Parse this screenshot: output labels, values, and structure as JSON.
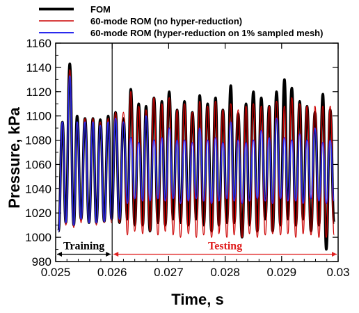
{
  "chart_data": {
    "type": "line",
    "xlabel": "Time, s",
    "ylabel": "Pressure, kPa",
    "xlim": [
      0.025,
      0.03
    ],
    "ylim": [
      980,
      1160
    ],
    "x_ticks": [
      "0.025",
      "0.026",
      "0.027",
      "0.028",
      "0.029",
      "0.03"
    ],
    "y_ticks": [
      "980",
      "1000",
      "1020",
      "1040",
      "1060",
      "1080",
      "1100",
      "1120",
      "1140",
      "1160"
    ],
    "legend_position": "top-left, outside plot",
    "series": [
      {
        "name": "FOM",
        "color": "#000000",
        "peaks_x": [
          0.02512,
          0.02525,
          0.02538,
          0.02552,
          0.02566,
          0.02579,
          0.02593,
          0.02606,
          0.0262,
          0.02633,
          0.02647,
          0.0266,
          0.02674,
          0.02688,
          0.02701,
          0.02715,
          0.02728,
          0.02742,
          0.02755,
          0.02769,
          0.02783,
          0.02796,
          0.0281,
          0.02823,
          0.02837,
          0.0285,
          0.02864,
          0.02878,
          0.02891,
          0.02905,
          0.02918,
          0.02932,
          0.02945,
          0.02959,
          0.02973,
          0.02986
        ],
        "peaks_y": [
          1095,
          1143,
          1100,
          1098,
          1098,
          1097,
          1100,
          1103,
          1098,
          1122,
          1110,
          1108,
          1115,
          1112,
          1120,
          1105,
          1112,
          1103,
          1117,
          1110,
          1115,
          1105,
          1125,
          1102,
          1110,
          1120,
          1115,
          1108,
          1120,
          1130,
          1123,
          1112,
          1108,
          1103,
          1118,
          1105
        ],
        "troughs_x": [
          0.02505,
          0.02518,
          0.02532,
          0.02545,
          0.02559,
          0.02572,
          0.02586,
          0.02599,
          0.02613,
          0.02627,
          0.0264,
          0.02654,
          0.02667,
          0.02681,
          0.02694,
          0.02708,
          0.02721,
          0.02735,
          0.02749,
          0.02762,
          0.02776,
          0.02789,
          0.02803,
          0.02816,
          0.0283,
          0.02843,
          0.02857,
          0.02871,
          0.02884,
          0.02898,
          0.02911,
          0.02925,
          0.02938,
          0.02952,
          0.02966,
          0.02979,
          0.02993
        ],
        "troughs_y": [
          1005,
          1012,
          1010,
          1015,
          1012,
          1012,
          1013,
          1015,
          1012,
          1015,
          1010,
          1010,
          1005,
          1012,
          1010,
          1015,
          1012,
          1010,
          1015,
          1010,
          1005,
          1010,
          1012,
          1012,
          1000,
          1010,
          1005,
          1015,
          1005,
          1010,
          1015,
          1010,
          1015,
          1005,
          1010,
          990,
          1012
        ]
      },
      {
        "name": "60-mode ROM (no hyper-reduction)",
        "color": "#cc0000",
        "peaks_x": [
          0.02512,
          0.02525,
          0.02538,
          0.02552,
          0.02566,
          0.02579,
          0.02593,
          0.02606,
          0.0262,
          0.02633,
          0.02647,
          0.0266,
          0.02674,
          0.02688,
          0.02701,
          0.02715,
          0.02728,
          0.02742,
          0.02755,
          0.02769,
          0.02783,
          0.02796,
          0.0281,
          0.02823,
          0.02837,
          0.0285,
          0.02864,
          0.02878,
          0.02891,
          0.02905,
          0.02918,
          0.02932,
          0.02945,
          0.02959,
          0.02973,
          0.02986
        ],
        "peaks_y": [
          1095,
          1138,
          1095,
          1098,
          1098,
          1095,
          1098,
          1103,
          1103,
          1120,
          1108,
          1105,
          1115,
          1110,
          1115,
          1105,
          1110,
          1103,
          1112,
          1108,
          1112,
          1105,
          1110,
          1105,
          1108,
          1110,
          1108,
          1108,
          1112,
          1108,
          1115,
          1110,
          1108,
          1108,
          1108,
          1108
        ],
        "troughs_x": [
          0.02505,
          0.02518,
          0.02532,
          0.02545,
          0.02559,
          0.02572,
          0.02586,
          0.02599,
          0.02613,
          0.02627,
          0.0264,
          0.02654,
          0.02667,
          0.02681,
          0.02694,
          0.02708,
          0.02721,
          0.02735,
          0.02749,
          0.02762,
          0.02776,
          0.02789,
          0.02803,
          0.02816,
          0.0283,
          0.02843,
          0.02857,
          0.02871,
          0.02884,
          0.02898,
          0.02911,
          0.02925,
          0.02938,
          0.02952,
          0.02966,
          0.02979,
          0.02993
        ],
        "troughs_y": [
          1005,
          1010,
          1008,
          1012,
          1012,
          1010,
          1012,
          1012,
          1012,
          1002,
          1005,
          1003,
          1005,
          1002,
          1005,
          1002,
          1000,
          1003,
          1000,
          1002,
          1000,
          1003,
          1000,
          1002,
          1000,
          1003,
          1000,
          1002,
          1003,
          1002,
          1003,
          1000,
          1003,
          1002,
          1000,
          1000,
          1002
        ]
      },
      {
        "name": "60-mode ROM (hyper-reduction on 1% sampled mesh)",
        "color": "#2a2aee",
        "peaks_x": [
          0.02512,
          0.02525,
          0.02538,
          0.02552,
          0.02566,
          0.02579,
          0.02593,
          0.02606,
          0.0262,
          0.02633,
          0.02647,
          0.0266,
          0.02674,
          0.02688,
          0.02701,
          0.02715,
          0.02728,
          0.02742,
          0.02755,
          0.02769,
          0.02783,
          0.02796,
          0.0281,
          0.02823,
          0.02837,
          0.0285,
          0.02864,
          0.02878,
          0.02891,
          0.02905,
          0.02918,
          0.02932,
          0.02945,
          0.02959,
          0.02973,
          0.02986
        ],
        "peaks_y": [
          1095,
          1133,
          1095,
          1095,
          1095,
          1092,
          1095,
          1098,
          1095,
          1082,
          1078,
          1100,
          1080,
          1082,
          1090,
          1080,
          1080,
          1078,
          1090,
          1080,
          1082,
          1078,
          1095,
          1080,
          1078,
          1080,
          1088,
          1082,
          1098,
          1082,
          1080,
          1085,
          1080,
          1090,
          1078,
          1080
        ],
        "troughs_x": [
          0.02505,
          0.02518,
          0.02532,
          0.02545,
          0.02559,
          0.02572,
          0.02586,
          0.02599,
          0.02613,
          0.02627,
          0.0264,
          0.02654,
          0.02667,
          0.02681,
          0.02694,
          0.02708,
          0.02721,
          0.02735,
          0.02749,
          0.02762,
          0.02776,
          0.02789,
          0.02803,
          0.02816,
          0.0283,
          0.02843,
          0.02857,
          0.02871,
          0.02884,
          0.02898,
          0.02911,
          0.02925,
          0.02938,
          0.02952,
          0.02966,
          0.02979,
          0.02993
        ],
        "troughs_y": [
          1005,
          1012,
          1010,
          1015,
          1012,
          1012,
          1013,
          1015,
          1015,
          1028,
          1032,
          1030,
          1030,
          1032,
          1030,
          1032,
          1028,
          1030,
          1032,
          1030,
          1028,
          1030,
          1032,
          1030,
          1028,
          1030,
          1032,
          1030,
          1028,
          1032,
          1030,
          1030,
          1028,
          1032,
          1030,
          1028,
          1030
        ]
      }
    ],
    "annotations": [
      {
        "label": "Training",
        "x_start": 0.025,
        "x_end": 0.026,
        "y": 986,
        "color": "#000000"
      },
      {
        "label": "Testing",
        "x_start": 0.026,
        "x_end": 0.03,
        "y": 986,
        "color": "#e02020"
      }
    ],
    "divider_x": 0.026
  }
}
